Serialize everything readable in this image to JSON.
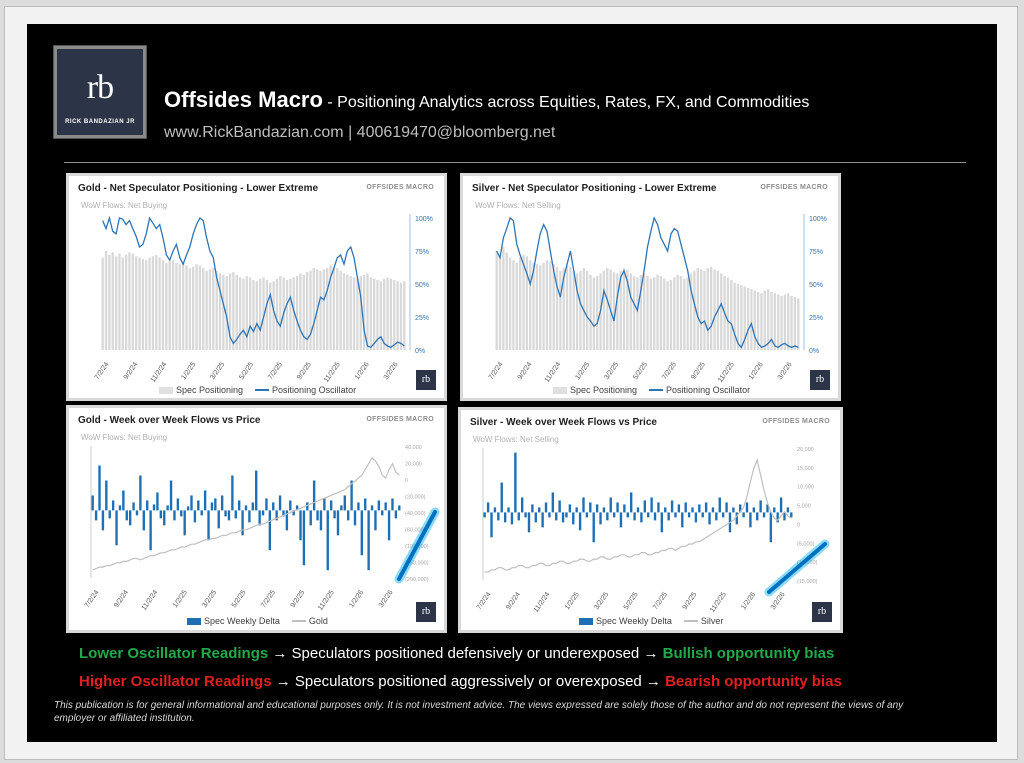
{
  "header": {
    "logo_text": "rb",
    "logo_name": "RICK BANDAZIAN JR",
    "title": "Offsides Macro",
    "subtitle": " - Positioning Analytics across Equities, Rates, FX, and Commodities",
    "contact": "www.RickBandazian.com  |  400619470@bloomberg.net"
  },
  "brand": "OFFSIDES MACRO",
  "mini_logo": "rb",
  "colors": {
    "spec_bar": "#d9d9d9",
    "oscillator": "#2e75b6",
    "delta_bar": "#1f6fb5",
    "price": "#bfbfbf",
    "glow": "#00b0f0"
  },
  "x_ticks": [
    "7/2/24",
    "9/2/24",
    "11/2/24",
    "1/2/25",
    "3/2/25",
    "5/2/25",
    "7/2/25",
    "9/2/25",
    "11/2/25",
    "1/2/26",
    "3/2/26"
  ],
  "chart_data": [
    {
      "id": "gold-osc",
      "type": "bar",
      "title": "Gold - Net Speculator Positioning - Lower Extreme",
      "note": "WoW Flows: Net Buying",
      "y_ticks": [
        "100%",
        "75%",
        "50%",
        "25%",
        "0%"
      ],
      "ylim": [
        0,
        100
      ],
      "series": [
        {
          "name": "Spec Positioning",
          "kind": "bar",
          "values": [
            70,
            75,
            72,
            74,
            71,
            73,
            70,
            72,
            74,
            73,
            71,
            70,
            69,
            68,
            70,
            71,
            72,
            70,
            68,
            66,
            67,
            68,
            66,
            65,
            66,
            64,
            62,
            63,
            65,
            64,
            62,
            60,
            61,
            62,
            60,
            58,
            57,
            56,
            58,
            59,
            57,
            55,
            54,
            56,
            55,
            53,
            52,
            54,
            55,
            53,
            51,
            52,
            54,
            56,
            55,
            53,
            54,
            55,
            56,
            58,
            57,
            59,
            60,
            62,
            61,
            60,
            61,
            62,
            64,
            63,
            62,
            60,
            58,
            57,
            56,
            55,
            54,
            56,
            57,
            58,
            55,
            54,
            53,
            52,
            54,
            55,
            54,
            53,
            52,
            51,
            52
          ]
        },
        {
          "name": "Positioning Oscillator",
          "kind": "line",
          "values": [
            98,
            92,
            100,
            90,
            88,
            100,
            99,
            95,
            98,
            92,
            86,
            78,
            80,
            88,
            100,
            96,
            92,
            95,
            85,
            72,
            68,
            75,
            80,
            70,
            65,
            72,
            78,
            88,
            95,
            100,
            98,
            85,
            75,
            70,
            55,
            45,
            35,
            25,
            10,
            5,
            8,
            12,
            15,
            10,
            18,
            14,
            20,
            15,
            25,
            35,
            42,
            30,
            22,
            18,
            28,
            35,
            40,
            30,
            22,
            15,
            10,
            8,
            12,
            20,
            30,
            40,
            38,
            45,
            55,
            62,
            70,
            72,
            65,
            75,
            78,
            70,
            55,
            40,
            15,
            3,
            2,
            5,
            8,
            10,
            5,
            3,
            2,
            4,
            6,
            5,
            3
          ]
        }
      ]
    },
    {
      "id": "silver-osc",
      "type": "bar",
      "title": "Silver - Net Speculator Positioning - Lower Extreme",
      "note": "WoW Flows: Net Selling",
      "y_ticks": [
        "100%",
        "75%",
        "50%",
        "25%",
        "0%"
      ],
      "ylim": [
        0,
        100
      ],
      "series": [
        {
          "name": "Spec Positioning",
          "kind": "bar",
          "values": [
            75,
            72,
            78,
            74,
            70,
            68,
            66,
            70,
            72,
            71,
            68,
            66,
            65,
            64,
            66,
            68,
            67,
            65,
            63,
            60,
            62,
            64,
            63,
            60,
            58,
            60,
            62,
            60,
            57,
            55,
            56,
            58,
            60,
            62,
            61,
            59,
            58,
            60,
            62,
            61,
            58,
            56,
            55,
            57,
            58,
            56,
            54,
            55,
            57,
            56,
            54,
            52,
            53,
            55,
            57,
            56,
            54,
            55,
            58,
            60,
            62,
            61,
            60,
            62,
            63,
            61,
            60,
            58,
            56,
            55,
            53,
            51,
            50,
            49,
            48,
            47,
            46,
            45,
            44,
            43,
            45,
            46,
            44,
            43,
            42,
            41,
            42,
            43,
            41,
            40,
            39
          ]
        },
        {
          "name": "Positioning Oscillator",
          "kind": "line",
          "values": [
            75,
            70,
            85,
            92,
            100,
            98,
            80,
            72,
            65,
            58,
            50,
            60,
            75,
            88,
            95,
            90,
            75,
            60,
            48,
            40,
            55,
            65,
            75,
            60,
            45,
            35,
            30,
            25,
            22,
            18,
            20,
            30,
            45,
            38,
            30,
            22,
            40,
            55,
            60,
            52,
            40,
            35,
            30,
            45,
            60,
            78,
            90,
            100,
            95,
            85,
            80,
            75,
            88,
            92,
            90,
            80,
            70,
            60,
            45,
            35,
            25,
            20,
            22,
            15,
            18,
            25,
            30,
            35,
            28,
            22,
            20,
            12,
            5,
            2,
            8,
            15,
            20,
            10,
            5,
            2,
            3,
            5,
            8,
            3,
            2,
            4,
            5,
            3,
            2,
            3,
            2
          ]
        }
      ]
    },
    {
      "id": "gold-flows",
      "type": "bar",
      "title": "Gold - Week over Week Flows vs Price",
      "note": "WoW Flows: Net Buying",
      "y_ticks": [
        "40,000",
        "20,000",
        "0",
        "(20,000)",
        "(40,000)",
        "(60,000)",
        "(100,000)",
        "(150,000)",
        "(200,000)"
      ],
      "series": [
        {
          "name": "Spec Weekly Delta",
          "kind": "bar",
          "values": [
            15,
            -10,
            45,
            -20,
            30,
            -8,
            10,
            -35,
            5,
            20,
            -10,
            -15,
            8,
            -5,
            35,
            -20,
            10,
            -40,
            6,
            18,
            -8,
            -15,
            5,
            30,
            -10,
            12,
            -6,
            -25,
            4,
            15,
            -12,
            10,
            -5,
            20,
            -30,
            8,
            12,
            -18,
            15,
            -6,
            -10,
            35,
            -8,
            10,
            -25,
            5,
            -12,
            8,
            40,
            -15,
            -5,
            12,
            -40,
            8,
            -10,
            15,
            -6,
            -20,
            10,
            -5,
            5,
            -30,
            -55,
            8,
            -15,
            30,
            -10,
            -20,
            12,
            -60,
            10,
            -8,
            -25,
            5,
            15,
            -10,
            30,
            -15,
            8,
            -45,
            12,
            -60,
            5,
            -20,
            10,
            -5,
            8,
            -30,
            12,
            -8,
            5
          ]
        },
        {
          "name": "Gold",
          "kind": "line",
          "values": [
            14,
            15,
            16,
            16,
            17,
            17,
            18,
            19,
            19,
            20,
            20,
            21,
            22,
            22,
            21,
            22,
            23,
            24,
            24,
            25,
            26,
            26,
            27,
            28,
            28,
            29,
            30,
            30,
            31,
            32,
            32,
            33,
            34,
            35,
            35,
            36,
            36,
            37,
            38,
            38,
            39,
            40,
            40,
            41,
            42,
            42,
            43,
            44,
            45,
            46,
            46,
            47,
            48,
            49,
            50,
            51,
            52,
            53,
            54,
            55,
            56,
            57,
            58,
            59,
            60,
            61,
            62,
            63,
            64,
            65,
            66,
            67,
            68,
            69,
            70,
            72,
            74,
            76,
            78,
            80,
            84,
            88,
            92,
            90,
            86,
            80,
            78,
            84,
            88,
            82,
            80
          ]
        }
      ]
    },
    {
      "id": "silver-flows",
      "type": "bar",
      "title": "Silver - Week over Week Flows vs Price",
      "note": "WoW Flows: Net Selling",
      "y_ticks": [
        "20,000",
        "15,000",
        "10,000",
        "5,000",
        "0",
        "(5,000)",
        "(10,000)",
        "(15,000)"
      ],
      "series": [
        {
          "name": "Spec Weekly Delta",
          "kind": "bar",
          "values": [
            -5,
            10,
            -25,
            5,
            -8,
            30,
            -10,
            5,
            -12,
            60,
            -8,
            15,
            -5,
            -20,
            8,
            -10,
            5,
            -15,
            10,
            -5,
            20,
            -8,
            12,
            -10,
            -5,
            8,
            -12,
            5,
            -18,
            15,
            -5,
            10,
            -30,
            8,
            -12,
            5,
            -8,
            15,
            -5,
            10,
            -15,
            8,
            -5,
            20,
            -8,
            5,
            -10,
            12,
            -5,
            15,
            -8,
            10,
            -20,
            5,
            -8,
            12,
            -5,
            8,
            -15,
            10,
            -5,
            5,
            -10,
            8,
            -5,
            10,
            -12,
            5,
            -8,
            15,
            -5,
            10,
            -20,
            5,
            -12,
            8,
            -5,
            10,
            -15,
            5,
            -8,
            12,
            -5,
            8,
            -30,
            5,
            -10,
            15,
            -8,
            5,
            -5
          ]
        },
        {
          "name": "Silver",
          "kind": "line",
          "values": [
            10,
            10,
            11,
            11,
            12,
            12,
            11,
            11,
            12,
            12,
            13,
            13,
            12,
            12,
            13,
            13,
            14,
            14,
            13,
            13,
            14,
            14,
            15,
            15,
            14,
            14,
            15,
            15,
            16,
            16,
            15,
            15,
            16,
            16,
            17,
            17,
            16,
            16,
            17,
            17,
            18,
            18,
            17,
            17,
            18,
            18,
            19,
            19,
            18,
            18,
            19,
            19,
            20,
            20,
            21,
            21,
            20,
            21,
            22,
            22,
            23,
            23,
            24,
            24,
            25,
            26,
            27,
            28,
            29,
            30,
            31,
            32,
            33,
            34,
            36,
            38,
            40,
            45,
            52,
            58,
            62,
            55,
            48,
            42,
            38,
            35,
            34,
            36,
            38,
            36,
            35
          ]
        }
      ]
    }
  ],
  "bottom": {
    "line1_a": "Lower Oscillator Readings",
    "line1_b": " → Speculators positioned defensively or underexposed → ",
    "line1_c": "Bullish opportunity bias",
    "line2_a": "Higher Oscillator Readings",
    "line2_b": " → Speculators positioned aggressively or overexposed → ",
    "line2_c": "Bearish opportunity bias",
    "disclaimer": "This publication is for general informational and educational purposes only. It is not investment advice. The views expressed are solely those of the author and do not represent the views of any employer or affiliated institution."
  }
}
